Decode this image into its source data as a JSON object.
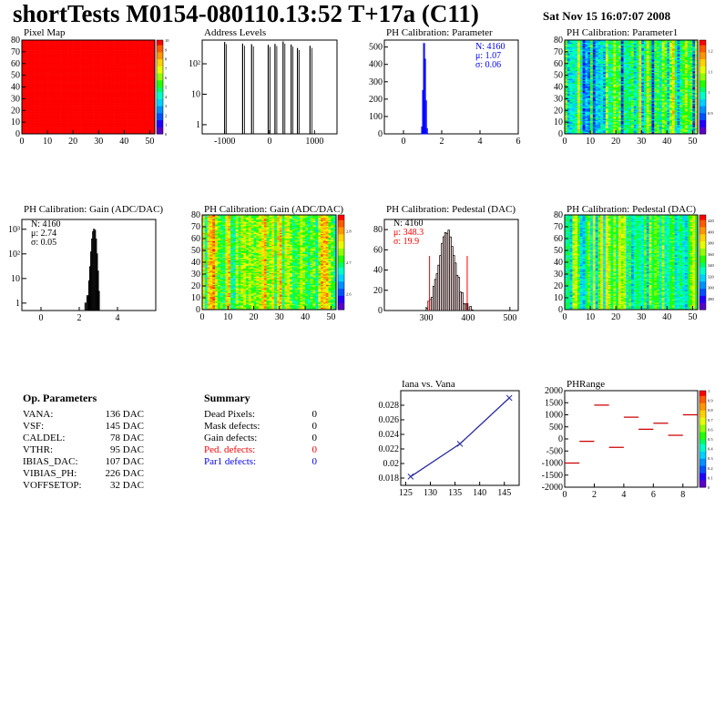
{
  "header": {
    "title": "shortTests M0154-080110.13:52 T+17a (C11)",
    "date": "Sat Nov 15 16:07:07 2008"
  },
  "colors": {
    "frame": "#000000",
    "stat_red": "#ff0000",
    "stat_blue": "#0000ff",
    "fit_line": "#2a2aa0",
    "palette": [
      "#5b00c8",
      "#2200ff",
      "#0050ff",
      "#0090ff",
      "#00d2ff",
      "#00ffc8",
      "#00ff64",
      "#24ff00",
      "#90ff00",
      "#e6ff00",
      "#ffd200",
      "#ff9600",
      "#ff5a00",
      "#ff0000"
    ]
  },
  "op_params": {
    "title": "Op. Parameters",
    "rows": [
      {
        "name": "VANA:",
        "value": "136 DAC"
      },
      {
        "name": "VSF:",
        "value": "145 DAC"
      },
      {
        "name": "CALDEL:",
        "value": "78 DAC"
      },
      {
        "name": "VTHR:",
        "value": "95 DAC"
      },
      {
        "name": "IBIAS_DAC:",
        "value": "107 DAC"
      },
      {
        "name": "VIBIAS_PH:",
        "value": "226 DAC"
      },
      {
        "name": "VOFFSETOP:",
        "value": "32 DAC"
      }
    ]
  },
  "summary": {
    "title": "Summary",
    "rows": [
      {
        "name": "Dead Pixels:",
        "value": "0",
        "color": "#000000"
      },
      {
        "name": "Mask defects:",
        "value": "0",
        "color": "#000000"
      },
      {
        "name": "Gain defects:",
        "value": "0",
        "color": "#000000"
      },
      {
        "name": "Ped. defects:",
        "value": "0",
        "color": "#ff0000"
      },
      {
        "name": "Par1 defects:",
        "value": "0",
        "color": "#0000ff"
      }
    ]
  },
  "chart_data": [
    {
      "id": "pixelmap",
      "type": "heatmap",
      "title": "Pixel Map",
      "xlim": [
        0,
        52
      ],
      "ylim": [
        0,
        80
      ],
      "xticks": [
        "0",
        "10",
        "20",
        "30",
        "40",
        "50"
      ],
      "yticks": [
        "0",
        "10",
        "20",
        "30",
        "40",
        "50",
        "60",
        "70",
        "80"
      ],
      "zlim": [
        0,
        10
      ],
      "zticks": [
        "0",
        "1",
        "2",
        "3",
        "4",
        "5",
        "6",
        "7",
        "8",
        "9",
        "10"
      ],
      "fill_value": 10,
      "ncols": 52,
      "nrows": 80
    },
    {
      "id": "addrlevels",
      "type": "bar",
      "title": "Address Levels",
      "xlim": [
        -1500,
        1500
      ],
      "log_y": true,
      "ylim": [
        0.5,
        600
      ],
      "xticks": [
        "-1000",
        "0",
        "1000"
      ],
      "yticks": [
        "1",
        "10",
        "10²"
      ],
      "peaks": [
        {
          "x": -1000,
          "y": 520
        },
        {
          "x": -600,
          "y": 460
        },
        {
          "x": -400,
          "y": 440
        },
        {
          "x": -30,
          "y": 420
        },
        {
          "x": 120,
          "y": 450
        },
        {
          "x": 300,
          "y": 540
        },
        {
          "x": 480,
          "y": 430
        },
        {
          "x": 620,
          "y": 330
        },
        {
          "x": 900,
          "y": 390
        }
      ]
    },
    {
      "id": "phpar",
      "type": "bar",
      "title": "PH Calibration: Parameter",
      "xlim": [
        -1,
        6
      ],
      "ylim": [
        0,
        540
      ],
      "xticks": [
        "0",
        "2",
        "4",
        "6"
      ],
      "yticks": [
        "0",
        "100",
        "200",
        "300",
        "400",
        "500"
      ],
      "bins": [
        {
          "x": 0.95,
          "y": 40
        },
        {
          "x": 1.0,
          "y": 250
        },
        {
          "x": 1.05,
          "y": 520
        },
        {
          "x": 1.1,
          "y": 430
        },
        {
          "x": 1.15,
          "y": 190
        },
        {
          "x": 1.2,
          "y": 30
        }
      ],
      "stats": {
        "n": "N: 4160",
        "mean": "μ: 1.07",
        "sigma": "σ: 0.06"
      }
    },
    {
      "id": "phpar1",
      "type": "heatmap",
      "title": "PH Calibration: Parameter1",
      "xlim": [
        0,
        52
      ],
      "ylim": [
        0,
        80
      ],
      "xticks": [
        "0",
        "10",
        "20",
        "30",
        "40",
        "50"
      ],
      "yticks": [
        "0",
        "10",
        "20",
        "30",
        "40",
        "50",
        "60",
        "70",
        "80"
      ],
      "zlim": [
        0.8,
        1.25
      ],
      "zticks": [
        "0.9",
        "1",
        "1.1",
        "1.2"
      ],
      "ncols": 52,
      "nrows": 80,
      "col_base": 1.0,
      "col_amp": 0.12,
      "noise": 0.05
    },
    {
      "id": "gainhist",
      "type": "bar",
      "title": "PH Calibration: Gain (ADC/DAC)",
      "xlim": [
        -1,
        6
      ],
      "log_y": true,
      "ylim": [
        0.5,
        2500
      ],
      "xticks": [
        "0",
        "2",
        "4"
      ],
      "yticks": [
        "1",
        "10",
        "10²",
        "10³"
      ],
      "bins": [
        {
          "x": 2.3,
          "y": 1
        },
        {
          "x": 2.4,
          "y": 2
        },
        {
          "x": 2.5,
          "y": 8
        },
        {
          "x": 2.55,
          "y": 30
        },
        {
          "x": 2.6,
          "y": 120
        },
        {
          "x": 2.65,
          "y": 400
        },
        {
          "x": 2.7,
          "y": 800
        },
        {
          "x": 2.75,
          "y": 1000
        },
        {
          "x": 2.8,
          "y": 900
        },
        {
          "x": 2.85,
          "y": 400
        },
        {
          "x": 2.9,
          "y": 100
        },
        {
          "x": 2.95,
          "y": 20
        },
        {
          "x": 3.0,
          "y": 3
        }
      ],
      "stats": {
        "n": "N: 4160",
        "mean": "μ: 2.74",
        "sigma": "σ: 0.05"
      }
    },
    {
      "id": "gainmap",
      "type": "heatmap",
      "title": "PH Calibration: Gain (ADC/DAC)",
      "xlim": [
        0,
        52
      ],
      "ylim": [
        0,
        80
      ],
      "xticks": [
        "0",
        "10",
        "20",
        "30",
        "40",
        "50"
      ],
      "yticks": [
        "0",
        "10",
        "20",
        "30",
        "40",
        "50",
        "60",
        "70",
        "80"
      ],
      "zlim": [
        2.55,
        2.85
      ],
      "zticks": [
        "2.6",
        "2.7",
        "2.8"
      ],
      "ncols": 52,
      "nrows": 80,
      "col_base": 2.74,
      "col_amp": 0.06,
      "noise": 0.035
    },
    {
      "id": "pedhist",
      "type": "bar",
      "title": "PH Calibration: Pedestal (DAC)",
      "xlim": [
        200,
        520
      ],
      "ylim": [
        0,
        90
      ],
      "xticks": [
        "300",
        "400",
        "500"
      ],
      "yticks": [
        "0",
        "20",
        "40",
        "60",
        "80"
      ],
      "mean": 348.3,
      "sigma": 19.9,
      "peak": 78,
      "cut_lines": [
        308,
        398
      ],
      "stats": {
        "n": "N: 4160",
        "mean": "μ: 348.3",
        "sigma": "σ: 19.9"
      }
    },
    {
      "id": "pedmap",
      "type": "heatmap",
      "title": "PH Calibration: Pedestal (DAC)",
      "xlim": [
        0,
        52
      ],
      "ylim": [
        0,
        80
      ],
      "xticks": [
        "0",
        "10",
        "20",
        "30",
        "40",
        "50"
      ],
      "yticks": [
        "0",
        "10",
        "20",
        "30",
        "40",
        "50",
        "60",
        "70",
        "80"
      ],
      "zlim": [
        260,
        430
      ],
      "zticks": [
        "280",
        "300",
        "320",
        "340",
        "360",
        "380",
        "400",
        "420"
      ],
      "ncols": 52,
      "nrows": 80,
      "col_base": 348,
      "col_amp": 35,
      "noise": 12
    },
    {
      "id": "iana",
      "type": "line",
      "title": "Iana vs. Vana",
      "xlim": [
        124,
        148
      ],
      "ylim": [
        0.017,
        0.03
      ],
      "xticks": [
        "125",
        "130",
        "135",
        "140",
        "145"
      ],
      "yticks": [
        "0.018",
        "0.02",
        "0.022",
        "0.024",
        "0.026",
        "0.028"
      ],
      "x": [
        126,
        136,
        146
      ],
      "y": [
        0.0182,
        0.0227,
        0.029
      ]
    },
    {
      "id": "phrange",
      "type": "scatter",
      "title": "PHRange",
      "xlim": [
        0,
        9
      ],
      "ylim": [
        -2000,
        2000
      ],
      "xticks": [
        "0",
        "2",
        "4",
        "6",
        "8"
      ],
      "yticks": [
        "-2000",
        "-1500",
        "-1000",
        "-500",
        "0",
        "500",
        "1000",
        "1500",
        "2000"
      ],
      "zticks": [
        "0",
        "0.1",
        "0.2",
        "0.3",
        "0.4",
        "0.5",
        "0.6",
        "0.7",
        "0.8",
        "0.9",
        "1"
      ],
      "x": [
        0.5,
        1.5,
        2.5,
        3.5,
        4.5,
        5.5,
        6.5,
        7.5,
        8.5
      ],
      "y": [
        -1000,
        -100,
        1400,
        -350,
        900,
        400,
        650,
        150,
        1000
      ]
    }
  ]
}
